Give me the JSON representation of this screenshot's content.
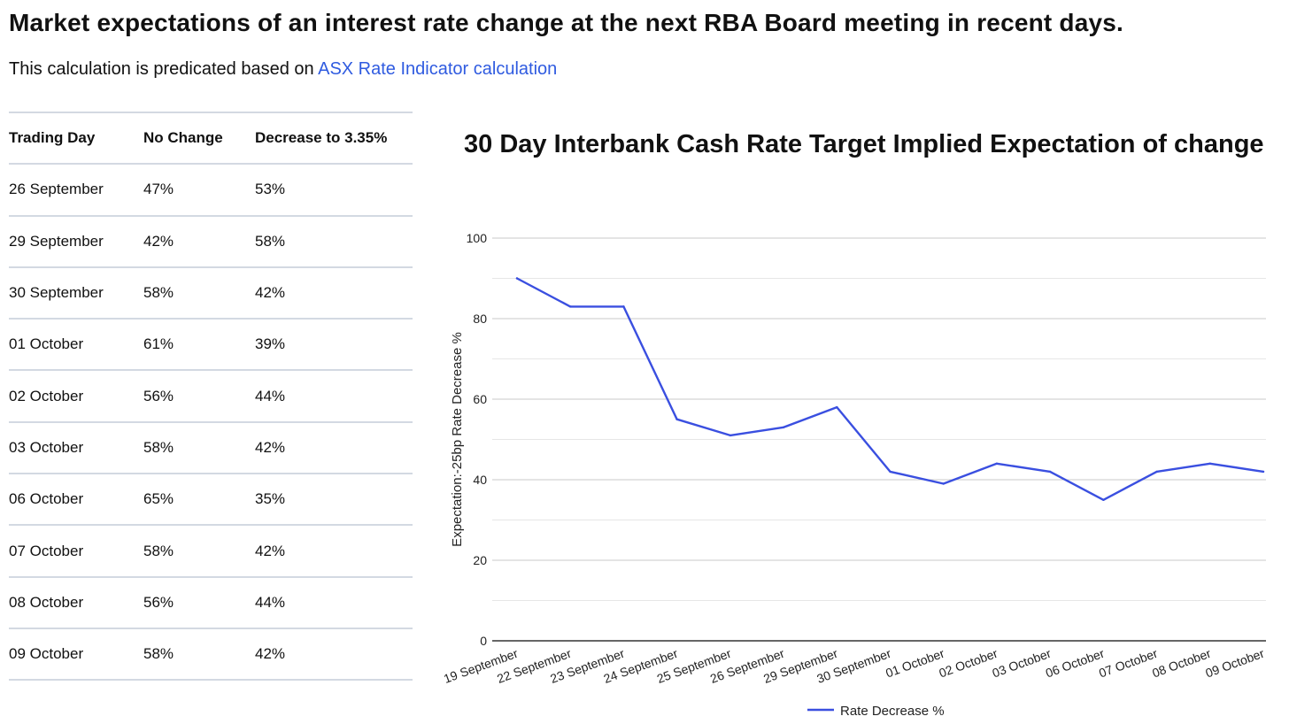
{
  "page": {
    "title": "Market expectations of an interest rate change at the next RBA Board meeting in recent days.",
    "subtitle_prefix": "This calculation is predicated based on ",
    "subtitle_link": "ASX Rate Indicator calculation"
  },
  "table": {
    "headers": [
      "Trading Day",
      "No Change",
      "Decrease to 3.35%"
    ],
    "rows": [
      [
        "26 September",
        "47%",
        "53%"
      ],
      [
        "29 September",
        "42%",
        "58%"
      ],
      [
        "30 September",
        "58%",
        "42%"
      ],
      [
        "01 October",
        "61%",
        "39%"
      ],
      [
        "02 October",
        "56%",
        "44%"
      ],
      [
        "03 October",
        "58%",
        "42%"
      ],
      [
        "06 October",
        "65%",
        "35%"
      ],
      [
        "07 October",
        "58%",
        "42%"
      ],
      [
        "08 October",
        "56%",
        "44%"
      ],
      [
        "09 October",
        "58%",
        "42%"
      ]
    ]
  },
  "chart_data": {
    "type": "line",
    "title": "30 Day Interbank Cash Rate Target Implied Expectation of change",
    "xlabel": "",
    "ylabel": "Expectation:-25bp Rate Decrease %",
    "ylim": [
      0,
      100
    ],
    "yticks": [
      0,
      20,
      40,
      60,
      80,
      100
    ],
    "grid": true,
    "legend_position": "bottom",
    "categories": [
      "19 September",
      "22 September",
      "23 September",
      "24 September",
      "25 September",
      "26 September",
      "29 September",
      "30 September",
      "01 October",
      "02 October",
      "03 October",
      "06 October",
      "07 October",
      "08 October",
      "09 October"
    ],
    "series": [
      {
        "name": "Rate Decrease %",
        "color": "#3a4fe0",
        "values": [
          90,
          83,
          83,
          55,
          51,
          53,
          58,
          42,
          39,
          44,
          42,
          35,
          42,
          44,
          42
        ]
      }
    ]
  }
}
